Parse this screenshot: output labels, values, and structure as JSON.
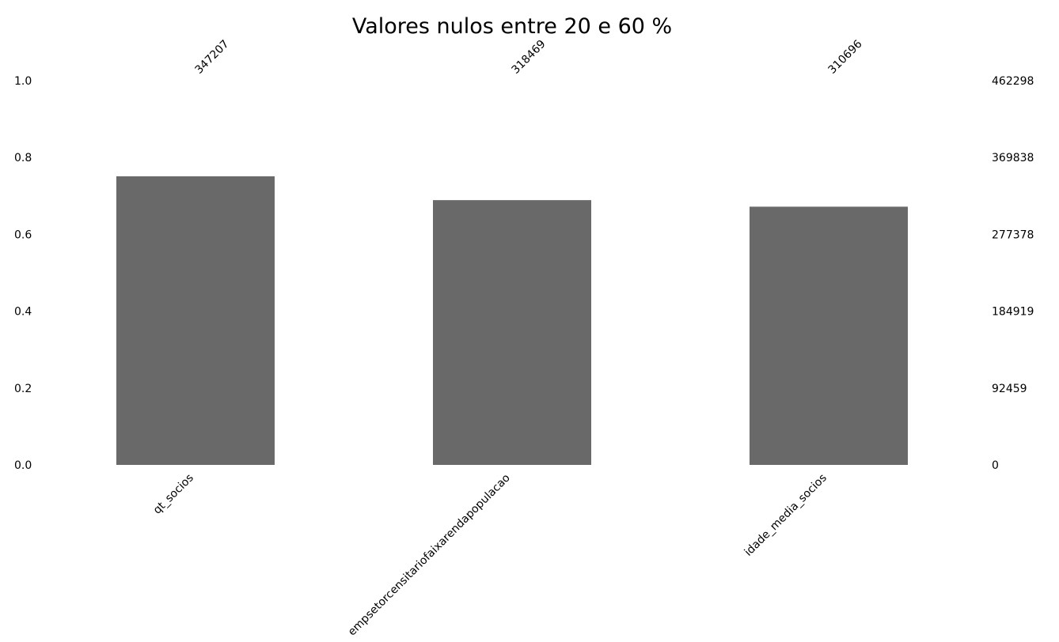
{
  "chart_data": {
    "type": "bar",
    "title": "Valores nulos entre 20 e 60 %",
    "categories": [
      "qt_socios",
      "empsetorcensitariofaixarendapopulacao",
      "idade_media_socios"
    ],
    "values": [
      0.751,
      0.689,
      0.672
    ],
    "counts": [
      "347207",
      "318469",
      "310696"
    ],
    "ylim": [
      0,
      1
    ],
    "left_ticks": [
      "0.0",
      "0.2",
      "0.4",
      "0.6",
      "0.8",
      "1.0"
    ],
    "right_ticks": [
      "0",
      "92459",
      "184919",
      "277378",
      "369838",
      "462298"
    ],
    "bar_color": "#696969",
    "grid": false,
    "legend": "none"
  }
}
